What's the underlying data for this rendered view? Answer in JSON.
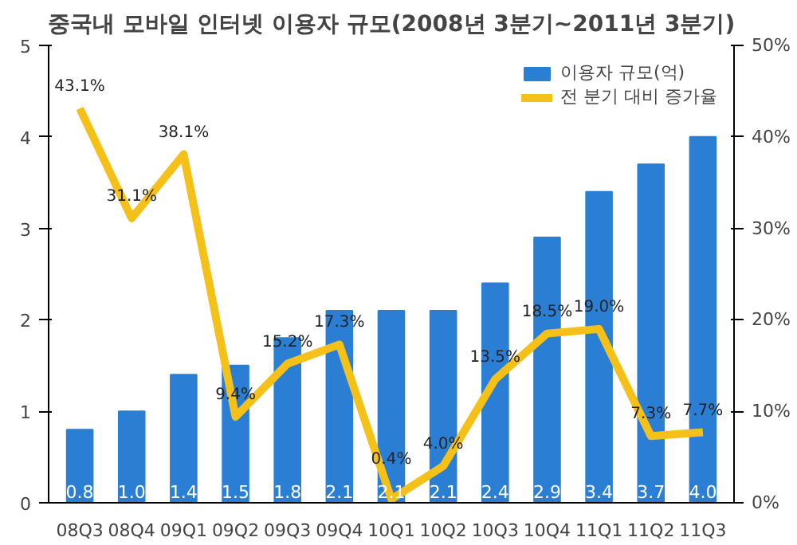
{
  "chart_data": {
    "type": "bar",
    "title": "중국내 모바일 인터넷 이용자 규모(2008년 3분기~2011년 3분기)",
    "categories": [
      "08Q3",
      "08Q4",
      "09Q1",
      "09Q2",
      "09Q3",
      "09Q4",
      "10Q1",
      "10Q2",
      "10Q3",
      "10Q4",
      "11Q1",
      "11Q2",
      "11Q3"
    ],
    "series": [
      {
        "name": "이용자 규모(억)",
        "color": "#2a7fd4",
        "values": [
          0.8,
          1.0,
          1.4,
          1.5,
          1.8,
          2.1,
          2.1,
          2.1,
          2.4,
          2.9,
          3.4,
          3.7,
          4.0
        ],
        "value_labels": [
          "0.8",
          "1.0",
          "1.4",
          "1.5",
          "1.8",
          "2.1",
          "2.1",
          "2.1",
          "2.4",
          "2.9",
          "3.4",
          "3.7",
          "4.0"
        ]
      },
      {
        "name": "전 분기 대비 증가율",
        "type": "line",
        "axis": "y2",
        "color": "#f5c018",
        "values": [
          43.1,
          31.1,
          38.1,
          9.4,
          15.2,
          17.3,
          0.4,
          4.0,
          13.5,
          18.5,
          19.0,
          7.3,
          7.7
        ],
        "value_labels": [
          "43.1%",
          "31.1%",
          "38.1%",
          "9.4%",
          "15.2%",
          "17.3%",
          "0.4%",
          "4.0%",
          "13.5%",
          "18.5%",
          "19.0%",
          "7.3%",
          "7.7%"
        ]
      }
    ],
    "ylim": [
      0,
      5
    ],
    "yticks": [
      0,
      1,
      2,
      3,
      4,
      5
    ],
    "y2lim": [
      0,
      50
    ],
    "y2ticks": [
      {
        "value": 0,
        "label": "0%"
      },
      {
        "value": 10,
        "label": "10%"
      },
      {
        "value": 20,
        "label": "20%"
      },
      {
        "value": 30,
        "label": "30%"
      },
      {
        "value": 40,
        "label": "40%"
      },
      {
        "value": 50,
        "label": "50%"
      }
    ],
    "grid": false,
    "legend": "top right",
    "marker": "none",
    "line_style": "solid"
  }
}
